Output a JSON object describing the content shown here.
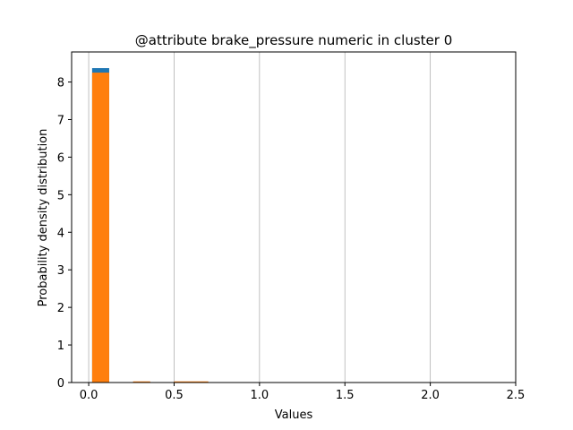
{
  "chart_data": {
    "type": "bar",
    "title": "@attribute brake_pressure numeric in cluster  0",
    "xlabel": "Values",
    "ylabel": "Probability density distribution",
    "xlim": [
      -0.1,
      2.5
    ],
    "ylim": [
      0,
      8.8
    ],
    "xticks": [
      "0.0",
      "0.5",
      "1.0",
      "1.5",
      "2.0",
      "2.5"
    ],
    "yticks": [
      "0",
      "1",
      "2",
      "3",
      "4",
      "5",
      "6",
      "7",
      "8"
    ],
    "grid": "x",
    "legend": "none",
    "series": [
      {
        "color": "#1f77b4",
        "bins": [
          {
            "x0": 0.02,
            "x1": 0.12,
            "value": 8.37
          },
          {
            "x0": 0.26,
            "x1": 0.36,
            "value": 0.02
          },
          {
            "x0": 0.5,
            "x1": 0.6,
            "value": 0.02
          },
          {
            "x0": 0.6,
            "x1": 0.7,
            "value": 0.02
          }
        ]
      },
      {
        "color": "#ff7f0e",
        "bins": [
          {
            "x0": 0.02,
            "x1": 0.12,
            "value": 8.25
          },
          {
            "x0": 0.26,
            "x1": 0.36,
            "value": 0.03
          },
          {
            "x0": 0.5,
            "x1": 0.6,
            "value": 0.03
          },
          {
            "x0": 0.6,
            "x1": 0.7,
            "value": 0.03
          }
        ]
      }
    ]
  }
}
